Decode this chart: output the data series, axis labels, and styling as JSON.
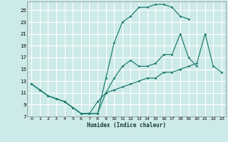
{
  "xlabel": "Humidex (Indice chaleur)",
  "bg_color": "#cceae7",
  "grid_color": "#ffffff",
  "line_color": "#1a7a6e",
  "xlim": [
    -0.5,
    23.5
  ],
  "ylim": [
    7,
    26.5
  ],
  "xticks": [
    0,
    1,
    2,
    3,
    4,
    5,
    6,
    7,
    8,
    9,
    10,
    11,
    12,
    13,
    14,
    15,
    16,
    17,
    18,
    19,
    20,
    21,
    22,
    23
  ],
  "yticks": [
    7,
    9,
    11,
    13,
    15,
    17,
    19,
    21,
    23,
    25
  ],
  "line1_x": [
    0,
    1,
    2,
    3,
    4,
    5,
    6,
    7,
    8,
    9,
    10,
    11,
    12,
    13,
    14,
    15,
    16,
    17,
    18,
    19
  ],
  "line1_y": [
    12.5,
    11.5,
    10.5,
    10.0,
    9.5,
    8.5,
    7.5,
    7.5,
    7.5,
    13.5,
    19.5,
    23.0,
    24.0,
    25.5,
    25.5,
    26.0,
    26.0,
    25.5,
    24.0,
    23.5
  ],
  "line2_x": [
    0,
    1,
    2,
    3,
    4,
    5,
    6,
    7,
    8,
    9,
    10,
    11,
    12,
    13,
    14,
    15,
    16,
    17,
    18,
    19,
    20
  ],
  "line2_y": [
    12.5,
    11.5,
    10.5,
    10.0,
    9.5,
    8.5,
    7.5,
    7.5,
    9.5,
    11.0,
    13.5,
    15.5,
    16.5,
    15.5,
    15.5,
    16.0,
    17.5,
    17.5,
    21.0,
    17.0,
    15.5
  ],
  "line3_x": [
    0,
    1,
    2,
    3,
    4,
    5,
    6,
    7,
    8,
    9,
    10,
    11,
    12,
    13,
    14,
    15,
    16,
    17,
    18,
    19,
    20,
    21,
    22,
    23
  ],
  "line3_y": [
    12.5,
    11.5,
    10.5,
    10.0,
    9.5,
    8.5,
    7.5,
    7.5,
    7.5,
    11.0,
    11.5,
    12.0,
    12.5,
    13.0,
    13.5,
    13.5,
    14.5,
    14.5,
    15.0,
    15.5,
    16.0,
    21.0,
    15.5,
    14.5
  ]
}
